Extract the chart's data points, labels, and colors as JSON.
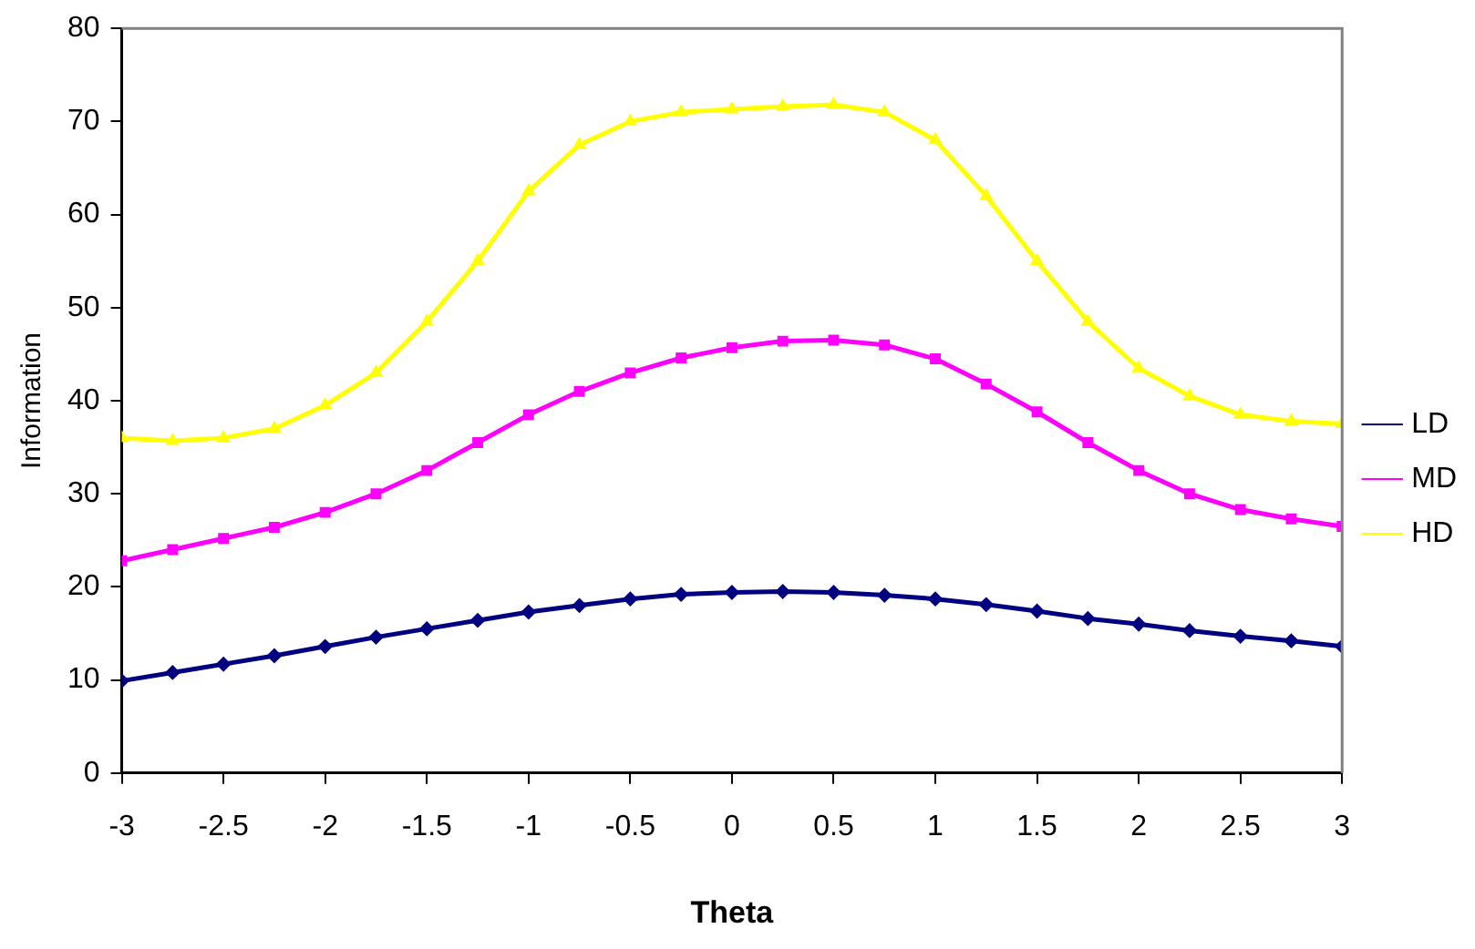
{
  "chart_data": {
    "type": "line",
    "xlabel": "Theta",
    "ylabel": "Information",
    "xlim": [
      -3,
      3
    ],
    "ylim": [
      0,
      80
    ],
    "xticks": [
      -3,
      -2.5,
      -2,
      -1.5,
      -1,
      -0.5,
      0,
      0.5,
      1,
      1.5,
      2,
      2.5,
      3
    ],
    "yticks": [
      0,
      10,
      20,
      30,
      40,
      50,
      60,
      70,
      80
    ],
    "x": [
      -3,
      -2.75,
      -2.5,
      -2.25,
      -2,
      -1.75,
      -1.5,
      -1.25,
      -1,
      -0.75,
      -0.5,
      -0.25,
      0,
      0.25,
      0.5,
      0.75,
      1,
      1.25,
      1.5,
      1.75,
      2,
      2.25,
      2.5,
      2.75,
      3
    ],
    "grid": false,
    "legend": "right",
    "line_style": "solid",
    "series": [
      {
        "name": "LD",
        "color": "#000080",
        "marker": "diamond",
        "values": [
          9.9,
          10.8,
          11.7,
          12.6,
          13.6,
          14.6,
          15.5,
          16.4,
          17.3,
          18,
          18.7,
          19.2,
          19.4,
          19.5,
          19.4,
          19.1,
          18.7,
          18.1,
          17.4,
          16.6,
          16,
          15.3,
          14.7,
          14.2,
          13.6
        ]
      },
      {
        "name": "MD",
        "color": "#ff00ff",
        "marker": "square",
        "values": [
          22.8,
          24,
          25.2,
          26.4,
          28,
          30,
          32.5,
          35.5,
          38.5,
          41,
          43,
          44.6,
          45.7,
          46.4,
          46.5,
          46,
          44.5,
          41.8,
          38.8,
          35.5,
          32.5,
          30,
          28.3,
          27.3,
          26.5
        ]
      },
      {
        "name": "HD",
        "color": "#ffff00",
        "marker": "triangle",
        "values": [
          36,
          35.7,
          36,
          37,
          39.5,
          43,
          48.5,
          55,
          62.5,
          67.5,
          70,
          71,
          71.3,
          71.6,
          71.8,
          71,
          68,
          62,
          55,
          48.5,
          43.5,
          40.5,
          38.5,
          37.8,
          37.5
        ]
      }
    ]
  }
}
